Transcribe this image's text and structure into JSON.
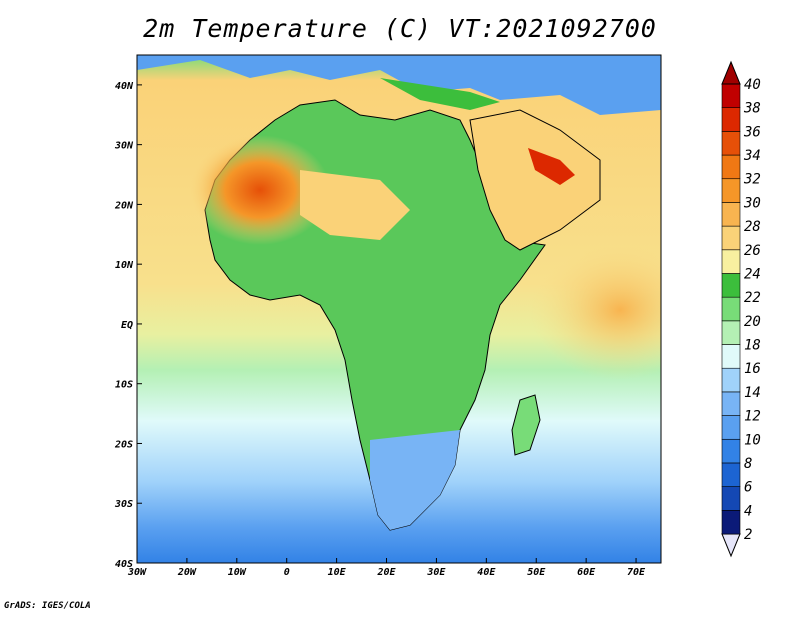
{
  "title": "2m Temperature (C) VT:2021092700",
  "footer": "GrADS: IGES/COLA",
  "map": {
    "projection": "latlon",
    "lon_range": [
      -30,
      75
    ],
    "lat_range": [
      -40,
      45
    ],
    "lon_ticks": [
      {
        "value": -30,
        "label": "30W"
      },
      {
        "value": -20,
        "label": "20W"
      },
      {
        "value": -10,
        "label": "10W"
      },
      {
        "value": 0,
        "label": "0"
      },
      {
        "value": 10,
        "label": "10E"
      },
      {
        "value": 20,
        "label": "20E"
      },
      {
        "value": 30,
        "label": "30E"
      },
      {
        "value": 40,
        "label": "40E"
      },
      {
        "value": 50,
        "label": "50E"
      },
      {
        "value": 60,
        "label": "60E"
      },
      {
        "value": 70,
        "label": "70E"
      }
    ],
    "lat_ticks": [
      {
        "value": 40,
        "label": "40N"
      },
      {
        "value": 30,
        "label": "30N"
      },
      {
        "value": 20,
        "label": "20N"
      },
      {
        "value": 10,
        "label": "10N"
      },
      {
        "value": 0,
        "label": "EQ"
      },
      {
        "value": -10,
        "label": "10S"
      },
      {
        "value": -20,
        "label": "20S"
      },
      {
        "value": -30,
        "label": "30S"
      },
      {
        "value": -40,
        "label": "40S"
      }
    ]
  },
  "colorbar": {
    "levels": [
      "2",
      "4",
      "6",
      "8",
      "10",
      "12",
      "14",
      "16",
      "18",
      "20",
      "22",
      "24",
      "26",
      "28",
      "30",
      "32",
      "34",
      "36",
      "38",
      "40"
    ],
    "colors": [
      "#e6e6fa",
      "#0b1a78",
      "#1448b4",
      "#1c64d2",
      "#3282e6",
      "#5aa0f0",
      "#78b4f5",
      "#a0d2fa",
      "#e0fafa",
      "#b4f0b4",
      "#78dc78",
      "#3cbe3c",
      "#f8f0a0",
      "#fad278",
      "#f8b450",
      "#f59628",
      "#f07814",
      "#e65008",
      "#dc2800",
      "#c00000",
      "#a00000"
    ]
  },
  "legend_colors": {
    "ocean_south_cold": "#b4d4f5",
    "ocean_tropical": "#f8e08c",
    "land_green": "#5ac85a",
    "desert_hot": "#f0a050",
    "coast_line": "#000000"
  }
}
